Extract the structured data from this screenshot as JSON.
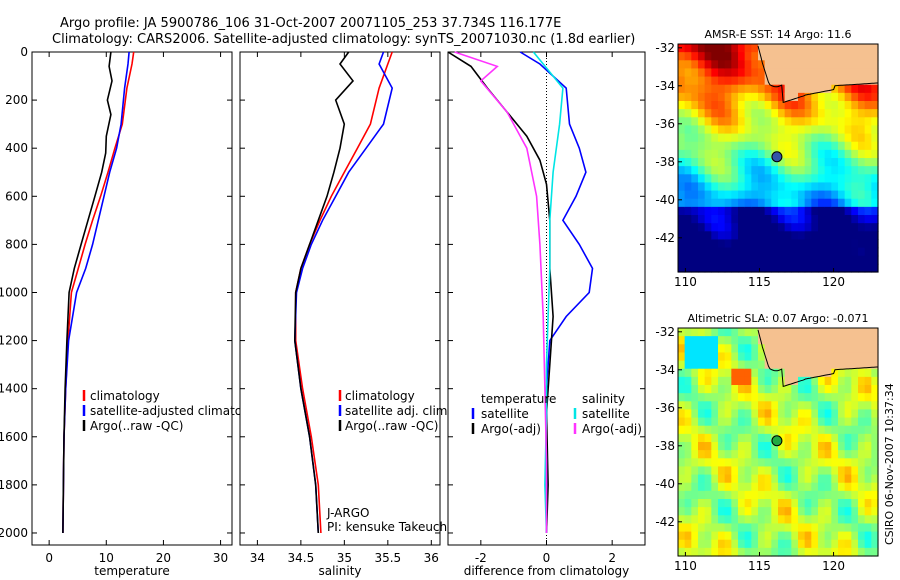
{
  "header": {
    "line1": "Argo profile: JA 5900786_106 31-Oct-2007 20071105_253 37.734S 116.177E",
    "line2": "Climatology: CARS2006. Satellite-adjusted climatology: synTS_20071030.nc (1.8d earlier)"
  },
  "side_stamp": "CSIRO 06-Nov-2007 10:37:34",
  "colors": {
    "climatology": "#ff0000",
    "satellite": "#0000ff",
    "argo": "#000000",
    "sat_salinity": "#00e5e5",
    "argo_salinity": "#ff33ff",
    "land": "#f5c190"
  },
  "chart_data": [
    {
      "type": "line",
      "name": "temperature-profile",
      "xlabel": "temperature",
      "ylabel": "",
      "xlim": [
        -3,
        32
      ],
      "ylim": [
        2050,
        0
      ],
      "xticks": [
        0,
        10,
        20,
        30
      ],
      "yticks": [
        0,
        200,
        400,
        600,
        800,
        1000,
        1200,
        1400,
        1600,
        1800,
        2000
      ],
      "legend": [
        "climatology",
        "satellite-adjusted climatology",
        "Argo(..raw -QC)"
      ],
      "series": [
        {
          "name": "climatology",
          "color": "#ff0000",
          "x": [
            14.8,
            14.5,
            13.6,
            12.8,
            11.5,
            10.3,
            9.0,
            7.6,
            6.3,
            5.1,
            3.9,
            3.3,
            2.9,
            2.6,
            2.5,
            2.4
          ],
          "depth": [
            0,
            50,
            150,
            300,
            400,
            500,
            600,
            700,
            800,
            900,
            1000,
            1200,
            1400,
            1600,
            1800,
            2000
          ]
        },
        {
          "name": "satellite-adjusted climatology",
          "color": "#0000ff",
          "x": [
            14.0,
            13.8,
            13.2,
            12.6,
            11.8,
            10.6,
            9.6,
            8.6,
            7.6,
            6.4,
            4.8,
            3.4,
            2.9,
            2.6,
            2.5,
            2.4
          ],
          "depth": [
            0,
            50,
            150,
            300,
            400,
            500,
            600,
            700,
            800,
            900,
            1000,
            1200,
            1400,
            1600,
            1800,
            2000
          ]
        },
        {
          "name": "Argo(..raw -QC)",
          "color": "#000000",
          "x": [
            10.8,
            10.5,
            11.0,
            10.2,
            10.8,
            10.0,
            9.9,
            9.2,
            8.0,
            6.8,
            5.6,
            4.4,
            3.5,
            3.1,
            2.8,
            2.6,
            2.5,
            2.4
          ],
          "depth": [
            0,
            60,
            120,
            200,
            260,
            350,
            420,
            500,
            600,
            700,
            800,
            900,
            1000,
            1200,
            1400,
            1600,
            1800,
            2000
          ]
        }
      ]
    },
    {
      "type": "line",
      "name": "salinity-profile",
      "xlabel": "salinity",
      "xlim": [
        33.8,
        36.1
      ],
      "ylim": [
        2050,
        0
      ],
      "xticks": [
        34,
        34.5,
        35,
        35.5,
        36
      ],
      "xticklabels": [
        "34",
        "34.5",
        "35",
        "35.5",
        "36"
      ],
      "legend": [
        "climatology",
        "satellite adj. clim.",
        "Argo(..raw -QC)"
      ],
      "annotation": [
        "J-ARGO",
        "PI: kensuke Takeuchi"
      ],
      "series": [
        {
          "name": "climatology",
          "color": "#ff0000",
          "x": [
            35.55,
            35.5,
            35.4,
            35.3,
            35.15,
            35.0,
            34.85,
            34.72,
            34.6,
            34.5,
            34.44,
            34.44,
            34.52,
            34.62,
            34.7,
            34.73
          ],
          "depth": [
            0,
            50,
            150,
            300,
            400,
            500,
            600,
            700,
            800,
            900,
            1000,
            1200,
            1400,
            1600,
            1800,
            2000
          ]
        },
        {
          "name": "satellite adj. clim.",
          "color": "#0000ff",
          "x": [
            35.45,
            35.4,
            35.55,
            35.45,
            35.25,
            35.05,
            34.9,
            34.75,
            34.62,
            34.52,
            34.45,
            34.43,
            34.5,
            34.6,
            34.67,
            34.7
          ],
          "depth": [
            0,
            50,
            150,
            300,
            400,
            500,
            600,
            700,
            800,
            900,
            1000,
            1200,
            1400,
            1600,
            1800,
            2000
          ]
        },
        {
          "name": "Argo(..raw -QC)",
          "color": "#000000",
          "x": [
            35.05,
            34.95,
            35.1,
            34.9,
            35.0,
            34.95,
            34.88,
            34.8,
            34.7,
            34.6,
            34.5,
            34.44,
            34.43,
            34.5,
            34.6,
            34.67,
            34.7
          ],
          "depth": [
            0,
            50,
            120,
            200,
            300,
            400,
            500,
            600,
            700,
            800,
            900,
            1000,
            1200,
            1400,
            1600,
            1800,
            2000
          ]
        }
      ]
    },
    {
      "type": "line",
      "name": "difference-profile",
      "xlabel": "difference from climatology",
      "xlim": [
        -3,
        3
      ],
      "ylim": [
        2050,
        0
      ],
      "xticks": [
        -2,
        0,
        2
      ],
      "legend": {
        "temperature": [
          "satellite",
          "Argo(-adj)"
        ],
        "salinity": [
          "satellite",
          "Argo(-adj)"
        ]
      },
      "legend_headers": [
        "temperature",
        "salinity"
      ],
      "series": [
        {
          "name": "temperature satellite",
          "color": "#0000ff",
          "x": [
            -0.8,
            -0.2,
            0.6,
            0.7,
            1.0,
            1.2,
            0.9,
            0.5,
            1.0,
            1.4,
            1.3,
            0.6,
            0.1,
            0.0,
            0.0,
            0.0
          ],
          "depth": [
            0,
            50,
            150,
            300,
            400,
            500,
            600,
            700,
            800,
            900,
            1000,
            1100,
            1200,
            1400,
            1700,
            2000
          ]
        },
        {
          "name": "temperature Argo(-adj)",
          "color": "#000000",
          "x": [
            -3.0,
            -2.3,
            -1.8,
            -1.2,
            -0.6,
            -0.2,
            0.0,
            0.1,
            0.1,
            0.2,
            0.1,
            0.0,
            0.05,
            0.0
          ],
          "depth": [
            0,
            60,
            150,
            250,
            350,
            450,
            550,
            700,
            900,
            1100,
            1300,
            1500,
            1800,
            2000
          ]
        },
        {
          "name": "salinity satellite",
          "color": "#00e5e5",
          "x": [
            -0.4,
            -0.1,
            0.5,
            0.4,
            0.2,
            0.1,
            0.1,
            0.05,
            0.0,
            0.0,
            -0.05,
            0.0
          ],
          "depth": [
            0,
            50,
            150,
            300,
            500,
            700,
            900,
            1100,
            1300,
            1500,
            1800,
            2000
          ]
        },
        {
          "name": "salinity Argo(-adj)",
          "color": "#ff33ff",
          "x": [
            -2.8,
            -1.5,
            -2.0,
            -1.2,
            -0.6,
            -0.3,
            -0.2,
            -0.1,
            -0.05,
            0.0,
            0.0
          ],
          "depth": [
            0,
            60,
            120,
            250,
            400,
            600,
            800,
            1100,
            1400,
            1700,
            2000
          ]
        }
      ]
    },
    {
      "type": "heatmap",
      "name": "sst-map",
      "title": "AMSR-E SST: 14  Argo: 11.6",
      "xlim": [
        109.5,
        123
      ],
      "ylim": [
        -43.8,
        -31.8
      ],
      "xticks": [
        110,
        115,
        120
      ],
      "yticks": [
        -32,
        -34,
        -36,
        -38,
        -40,
        -42
      ],
      "float_position": {
        "lon": 116.177,
        "lat": -37.734
      }
    },
    {
      "type": "heatmap",
      "name": "sla-map",
      "title": "Altimetric SLA: 0.07  Argo: -0.071",
      "xlim": [
        109.5,
        123
      ],
      "ylim": [
        -43.8,
        -31.8
      ],
      "xticks": [
        110,
        115,
        120
      ],
      "yticks": [
        -32,
        -34,
        -36,
        -38,
        -40,
        -42
      ],
      "float_position": {
        "lon": 116.177,
        "lat": -37.734
      }
    }
  ]
}
